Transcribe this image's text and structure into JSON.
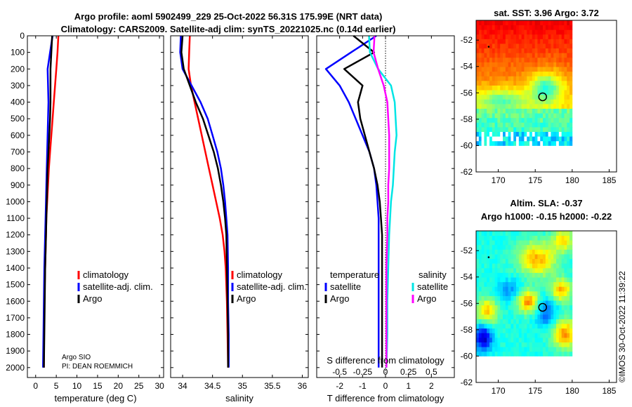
{
  "header": {
    "title_line1": "Argo profile: aoml 5902499_229 25-Oct-2022 56.31S 175.99E (NRT data)",
    "title_line2": "Climatology: CARS2009. Satellite-adj clim: synTS_20221025.nc (0.14d earlier)"
  },
  "attribution": {
    "argo": "Argo SIO",
    "pi": "PI: DEAN ROEMMICH",
    "imos": "©IMOS 30-Oct-2022 11:39:22"
  },
  "colors": {
    "climatology": "#ff0000",
    "satellite": "#0000ff",
    "argo": "#000000",
    "sal_satellite": "#00e5e5",
    "sal_argo": "#ff00ff",
    "dotted": "#000000"
  },
  "chart_data": [
    {
      "type": "line",
      "id": "temperature",
      "xlabel": "temperature (deg C)",
      "ylabel": "",
      "xlim": [
        -2,
        31
      ],
      "ylim": [
        2060,
        0
      ],
      "xticks": [
        0,
        5,
        10,
        15,
        20,
        25,
        30
      ],
      "xtick_labels": [
        "0",
        "5",
        "10",
        "15",
        "20",
        "25",
        "30"
      ],
      "yticks": [
        0,
        100,
        200,
        300,
        400,
        500,
        600,
        700,
        800,
        900,
        1000,
        1100,
        1200,
        1300,
        1400,
        1500,
        1600,
        1700,
        1800,
        1900,
        2000
      ],
      "legend": [
        "climatology",
        "satellite-adj. clim.",
        "Argo"
      ],
      "series": [
        {
          "name": "climatology",
          "color": "#ff0000",
          "width": 2.5,
          "x": [
            5.5,
            5.3,
            5.0,
            4.7,
            4.4,
            4.1,
            3.8,
            3.5,
            3.2,
            3.0,
            2.8,
            2.6,
            2.5,
            2.4,
            2.3,
            2.2,
            2.1,
            2.05,
            2.0
          ],
          "y": [
            0,
            100,
            200,
            300,
            400,
            500,
            600,
            700,
            800,
            900,
            1000,
            1100,
            1200,
            1300,
            1400,
            1500,
            1600,
            1800,
            2000
          ]
        },
        {
          "name": "satellite-adj. clim.",
          "color": "#0000ff",
          "width": 2.5,
          "x": [
            4.1,
            3.5,
            2.9,
            3.0,
            3.1,
            3.0,
            2.9,
            2.8,
            2.7,
            2.6,
            2.5,
            2.4,
            2.3,
            2.2,
            2.1,
            2.0,
            1.9,
            1.8
          ],
          "y": [
            0,
            100,
            200,
            300,
            400,
            500,
            600,
            700,
            800,
            900,
            1000,
            1100,
            1200,
            1300,
            1400,
            1600,
            1800,
            2000
          ]
        },
        {
          "name": "Argo",
          "color": "#000000",
          "width": 2.5,
          "x": [
            4.0,
            3.8,
            3.6,
            3.6,
            3.6,
            3.5,
            3.3,
            3.1,
            2.9,
            2.8,
            2.7,
            2.6,
            2.5,
            2.4,
            2.3,
            2.2,
            2.1,
            2.0
          ],
          "y": [
            0,
            100,
            200,
            300,
            400,
            500,
            600,
            700,
            800,
            900,
            1000,
            1100,
            1200,
            1300,
            1400,
            1600,
            1800,
            2000
          ]
        }
      ]
    },
    {
      "type": "line",
      "id": "salinity",
      "xlabel": "salinity",
      "ylabel": "",
      "xlim": [
        33.8,
        36.1
      ],
      "ylim": [
        2060,
        0
      ],
      "xticks": [
        34,
        34.5,
        35,
        35.5,
        36
      ],
      "xtick_labels": [
        "34",
        "34.5",
        "35",
        "35.5",
        "36"
      ],
      "legend": [
        "climatology",
        "satellite-adj. clim.",
        "Argo"
      ],
      "series": [
        {
          "name": "climatology",
          "color": "#ff0000",
          "width": 2.5,
          "x": [
            34.12,
            34.11,
            34.1,
            34.14,
            34.2,
            34.26,
            34.32,
            34.38,
            34.44,
            34.5,
            34.56,
            34.62,
            34.67,
            34.7,
            34.72,
            34.74,
            34.75,
            34.76
          ],
          "y": [
            0,
            100,
            200,
            300,
            400,
            500,
            600,
            700,
            800,
            900,
            1000,
            1100,
            1200,
            1300,
            1400,
            1600,
            1800,
            2000
          ]
        },
        {
          "name": "satellite-adj. clim.",
          "color": "#0000ff",
          "width": 2.5,
          "x": [
            33.97,
            33.96,
            34.0,
            34.15,
            34.3,
            34.42,
            34.5,
            34.58,
            34.64,
            34.68,
            34.71,
            34.73,
            34.75,
            34.76,
            34.76,
            34.77,
            34.77
          ],
          "y": [
            0,
            100,
            200,
            300,
            400,
            500,
            600,
            700,
            800,
            900,
            1000,
            1100,
            1200,
            1400,
            1600,
            1800,
            2000
          ]
        },
        {
          "name": "Argo",
          "color": "#000000",
          "width": 2.5,
          "x": [
            34.0,
            33.98,
            34.02,
            34.12,
            34.22,
            34.34,
            34.43,
            34.52,
            34.59,
            34.64,
            34.68,
            34.71,
            34.73,
            34.74,
            34.75,
            34.76,
            34.76
          ],
          "y": [
            0,
            100,
            200,
            300,
            400,
            500,
            600,
            700,
            800,
            900,
            1000,
            1100,
            1200,
            1400,
            1600,
            1800,
            2000
          ]
        }
      ]
    },
    {
      "type": "line",
      "id": "differences",
      "xlabel": "T difference from climatology",
      "top_label": "S difference from climatology",
      "xlim": [
        -3,
        3
      ],
      "ylim": [
        2060,
        0
      ],
      "xticks": [
        -2,
        -1,
        0,
        1,
        2
      ],
      "xtick_labels": [
        "-2",
        "-1",
        "0",
        "1",
        "2"
      ],
      "top_ticks": [
        "-0.5",
        "-0.25",
        "0",
        "0.25",
        "0.5"
      ],
      "legend_left_title": "temperature",
      "legend_right_title": "salinity",
      "legend_left": [
        "satellite",
        "Argo"
      ],
      "legend_right": [
        "satellite",
        "Argo"
      ],
      "series": [
        {
          "name": "T satellite",
          "color": "#0000ff",
          "width": 2.5,
          "x": [
            -0.4,
            -1.5,
            -2.6,
            -2.0,
            -1.6,
            -1.3,
            -1.0,
            -0.7,
            -0.5,
            -0.4,
            -0.35,
            -0.3,
            -0.3,
            -0.3,
            -0.3,
            -0.3,
            -0.3
          ],
          "y": [
            0,
            100,
            200,
            300,
            400,
            500,
            600,
            700,
            800,
            900,
            1000,
            1100,
            1200,
            1400,
            1600,
            1800,
            2000
          ]
        },
        {
          "name": "T Argo",
          "color": "#000000",
          "width": 2.5,
          "x": [
            -1.4,
            -0.5,
            -1.8,
            -1.0,
            -1.2,
            -1.1,
            -0.9,
            -0.7,
            -0.5,
            -0.35,
            -0.25,
            -0.2,
            -0.15,
            -0.15,
            -0.15,
            -0.15,
            -0.15
          ],
          "y": [
            0,
            100,
            200,
            300,
            400,
            500,
            600,
            700,
            800,
            900,
            1000,
            1100,
            1200,
            1400,
            1600,
            1800,
            2000
          ]
        },
        {
          "name": "S satellite",
          "color": "#00e5e5",
          "width": 2.5,
          "x": [
            -0.18,
            -0.17,
            -0.08,
            0.06,
            0.1,
            0.11,
            0.12,
            0.1,
            0.09,
            0.08,
            0.06,
            0.05,
            0.04,
            0.03,
            0.02,
            0.02,
            0.01
          ],
          "y": [
            0,
            100,
            200,
            300,
            400,
            500,
            600,
            700,
            800,
            900,
            1000,
            1100,
            1200,
            1400,
            1600,
            1800,
            2000
          ]
        },
        {
          "name": "S Argo",
          "color": "#ff00ff",
          "width": 2.5,
          "x": [
            -0.12,
            -0.13,
            -0.08,
            -0.02,
            0.02,
            0.03,
            0.04,
            0.04,
            0.04,
            0.03,
            0.03,
            0.02,
            0.02,
            0.01,
            0.01,
            0.01,
            0.01
          ],
          "y": [
            0,
            100,
            200,
            300,
            400,
            500,
            600,
            700,
            800,
            900,
            1000,
            1100,
            1200,
            1400,
            1600,
            1800,
            2000
          ]
        }
      ]
    },
    {
      "type": "heatmap",
      "id": "sst_map",
      "title": "sat. SST: 3.96 Argo: 3.72",
      "xlim": [
        167,
        186
      ],
      "ylim": [
        -62,
        -50.5
      ],
      "xticks": [
        170,
        175,
        180,
        185
      ],
      "xtick_labels": [
        "170",
        "175",
        "180",
        "185"
      ],
      "yticks": [
        -52,
        -54,
        -56,
        -58,
        -60,
        -62
      ],
      "ytick_labels": [
        "-52",
        "-54",
        "-56",
        "-58",
        "-60",
        "-62"
      ],
      "argo_position": [
        176.0,
        -56.3
      ]
    },
    {
      "type": "heatmap",
      "id": "sla_map",
      "title_line1": "Altim. SLA: -0.37",
      "title_line2": "Argo h1000: -0.15 h2000: -0.22",
      "xlim": [
        167,
        186
      ],
      "ylim": [
        -62,
        -50.5
      ],
      "xticks": [
        170,
        175,
        180,
        185
      ],
      "xtick_labels": [
        "170",
        "175",
        "180",
        "185"
      ],
      "yticks": [
        -52,
        -54,
        -56,
        -58,
        -60,
        -62
      ],
      "ytick_labels": [
        "-52",
        "-54",
        "-56",
        "-58",
        "-60",
        "-62"
      ],
      "argo_position": [
        176.0,
        -56.3
      ]
    }
  ]
}
